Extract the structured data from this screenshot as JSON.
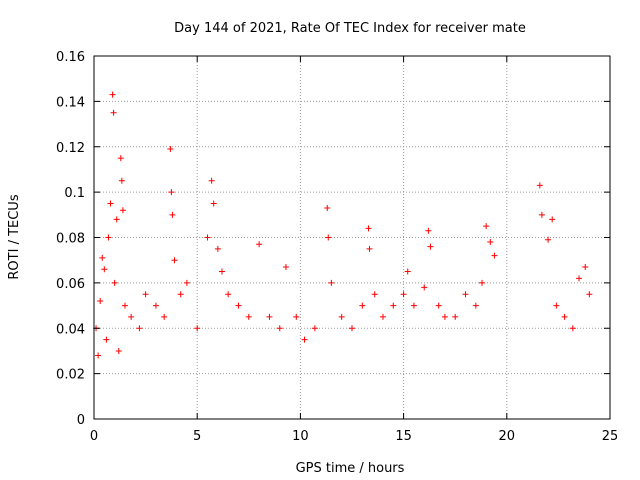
{
  "chart_data": {
    "type": "scatter",
    "title": "Day 144 of 2021, Rate Of TEC Index for receiver mate",
    "xlabel": "GPS time / hours",
    "ylabel": "ROTI / TECUs",
    "xlim": [
      0,
      25
    ],
    "ylim": [
      0,
      0.16
    ],
    "x_ticks": [
      0,
      5,
      10,
      15,
      20,
      25
    ],
    "x_tick_labels": [
      "0",
      "5",
      "10",
      "15",
      "20",
      "25"
    ],
    "y_ticks": [
      0,
      0.02,
      0.04,
      0.06,
      0.08,
      0.1,
      0.12,
      0.14,
      0.16
    ],
    "y_tick_labels": [
      "0",
      "0.02",
      "0.04",
      "0.06",
      "0.08",
      "0.1",
      "0.12",
      "0.14",
      "0.16"
    ],
    "grid": true,
    "marker": "+",
    "color": "#ff0000",
    "data_gaps_hours": [
      [
        19.6,
        21.5
      ]
    ],
    "series": [
      {
        "points": [
          [
            0.1,
            0.04
          ],
          [
            0.2,
            0.028
          ],
          [
            0.3,
            0.052
          ],
          [
            0.4,
            0.071
          ],
          [
            0.5,
            0.066
          ],
          [
            0.6,
            0.035
          ],
          [
            0.7,
            0.08
          ],
          [
            0.8,
            0.095
          ],
          [
            0.9,
            0.143
          ],
          [
            0.95,
            0.135
          ],
          [
            1.0,
            0.06
          ],
          [
            1.1,
            0.088
          ],
          [
            1.2,
            0.03
          ],
          [
            1.3,
            0.115
          ],
          [
            1.35,
            0.105
          ],
          [
            1.4,
            0.092
          ],
          [
            1.5,
            0.05
          ],
          [
            1.8,
            0.045
          ],
          [
            2.2,
            0.04
          ],
          [
            2.5,
            0.055
          ],
          [
            3.0,
            0.05
          ],
          [
            3.4,
            0.045
          ],
          [
            3.7,
            0.119
          ],
          [
            3.75,
            0.1
          ],
          [
            3.8,
            0.09
          ],
          [
            3.9,
            0.07
          ],
          [
            4.2,
            0.055
          ],
          [
            4.5,
            0.06
          ],
          [
            5.0,
            0.04
          ],
          [
            5.5,
            0.08
          ],
          [
            5.7,
            0.105
          ],
          [
            5.8,
            0.095
          ],
          [
            6.0,
            0.075
          ],
          [
            6.2,
            0.065
          ],
          [
            6.5,
            0.055
          ],
          [
            7.0,
            0.05
          ],
          [
            7.5,
            0.045
          ],
          [
            8.0,
            0.077
          ],
          [
            8.5,
            0.045
          ],
          [
            9.0,
            0.04
          ],
          [
            9.3,
            0.067
          ],
          [
            9.8,
            0.045
          ],
          [
            10.2,
            0.035
          ],
          [
            10.7,
            0.04
          ],
          [
            11.3,
            0.093
          ],
          [
            11.35,
            0.08
          ],
          [
            11.5,
            0.06
          ],
          [
            12.0,
            0.045
          ],
          [
            12.5,
            0.04
          ],
          [
            13.0,
            0.05
          ],
          [
            13.3,
            0.084
          ],
          [
            13.35,
            0.075
          ],
          [
            13.6,
            0.055
          ],
          [
            14.0,
            0.045
          ],
          [
            14.5,
            0.05
          ],
          [
            15.0,
            0.055
          ],
          [
            15.2,
            0.065
          ],
          [
            15.5,
            0.05
          ],
          [
            16.0,
            0.058
          ],
          [
            16.2,
            0.083
          ],
          [
            16.3,
            0.076
          ],
          [
            16.7,
            0.05
          ],
          [
            17.0,
            0.045
          ],
          [
            17.5,
            0.045
          ],
          [
            18.0,
            0.055
          ],
          [
            18.5,
            0.05
          ],
          [
            18.8,
            0.06
          ],
          [
            19.0,
            0.085
          ],
          [
            19.2,
            0.078
          ],
          [
            19.4,
            0.072
          ],
          [
            21.6,
            0.103
          ],
          [
            21.7,
            0.09
          ],
          [
            22.0,
            0.079
          ],
          [
            22.2,
            0.088
          ],
          [
            22.4,
            0.05
          ],
          [
            22.8,
            0.045
          ],
          [
            23.2,
            0.04
          ],
          [
            23.5,
            0.062
          ],
          [
            23.8,
            0.067
          ],
          [
            24.0,
            0.055
          ]
        ]
      }
    ]
  }
}
